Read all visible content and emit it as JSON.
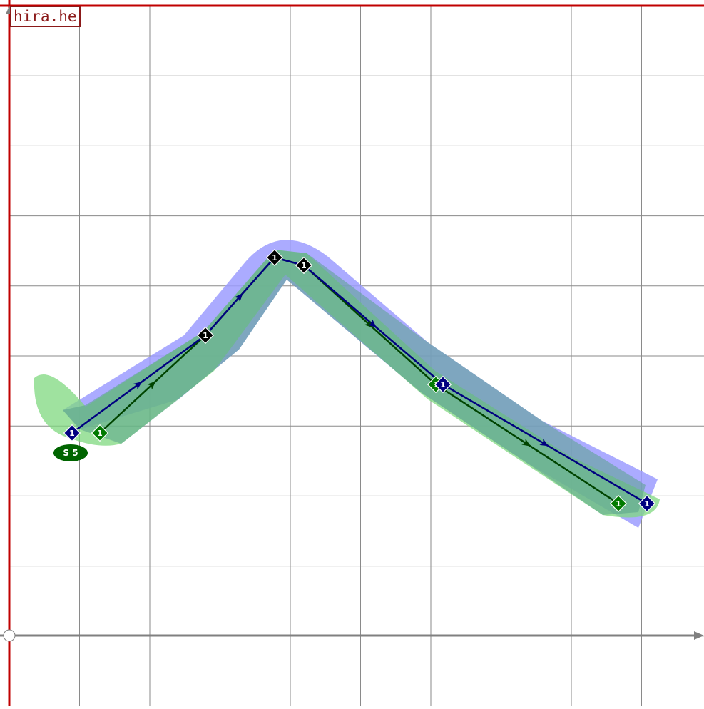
{
  "logo": {
    "text": "hira.he"
  },
  "colors": {
    "grid": "#8a8a8a",
    "frame": "#c00000",
    "axis": "#808080",
    "blue_band": "#9c9cff",
    "green_band": "#7fd87f",
    "overlap_band": "#6aab8e",
    "blue_path": "#000080",
    "green_path": "#004400",
    "green_node": "#007a00",
    "black_node": "#000000",
    "start_badge": "#006400"
  },
  "start_badge": {
    "label": "S 5"
  },
  "paths": {
    "blue": {
      "name": "",
      "nodes": [
        {
          "label": "1"
        },
        {
          "label": "1"
        },
        {
          "label": "1"
        },
        {
          "label": "1"
        },
        {
          "label": "1"
        },
        {
          "label": "1"
        }
      ]
    },
    "green": {
      "name": "",
      "nodes": [
        {
          "label": "1"
        },
        {
          "label": "1"
        },
        {
          "label": "1"
        },
        {
          "label": "1"
        },
        {
          "label": "1"
        },
        {
          "label": "1"
        }
      ]
    }
  }
}
